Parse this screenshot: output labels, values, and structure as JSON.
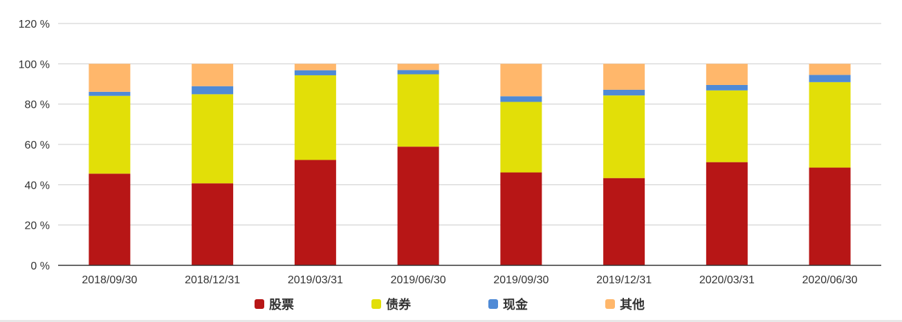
{
  "chart_data": {
    "type": "bar",
    "stacked": true,
    "categories": [
      "2018/09/30",
      "2018/12/31",
      "2019/03/31",
      "2019/06/30",
      "2019/09/30",
      "2019/12/31",
      "2020/03/31",
      "2020/06/30"
    ],
    "series": [
      {
        "name": "股票",
        "color": "#b71616",
        "values": [
          45.5,
          40.7,
          52.3,
          58.9,
          46.1,
          43.3,
          51.2,
          48.5
        ]
      },
      {
        "name": "债券",
        "color": "#e2df08",
        "values": [
          38.6,
          44.2,
          42.0,
          35.9,
          35.0,
          41.0,
          35.6,
          42.4
        ]
      },
      {
        "name": "现金",
        "color": "#4f8ad6",
        "values": [
          2.0,
          4.0,
          2.5,
          2.1,
          2.8,
          2.8,
          2.7,
          3.6
        ]
      },
      {
        "name": "其他",
        "color": "#ffb76b",
        "values": [
          13.9,
          11.1,
          3.2,
          3.1,
          16.1,
          12.9,
          10.5,
          5.5
        ]
      }
    ],
    "ylim": [
      0,
      120
    ],
    "yticks": [
      "0 %",
      "20 %",
      "40 %",
      "60 %",
      "80 %",
      "100 %",
      "120 %"
    ],
    "ytick_values": [
      0,
      20,
      40,
      60,
      80,
      100,
      120
    ],
    "grid": true,
    "legend_position": "bottom",
    "title": "",
    "xlabel": "",
    "ylabel": ""
  }
}
